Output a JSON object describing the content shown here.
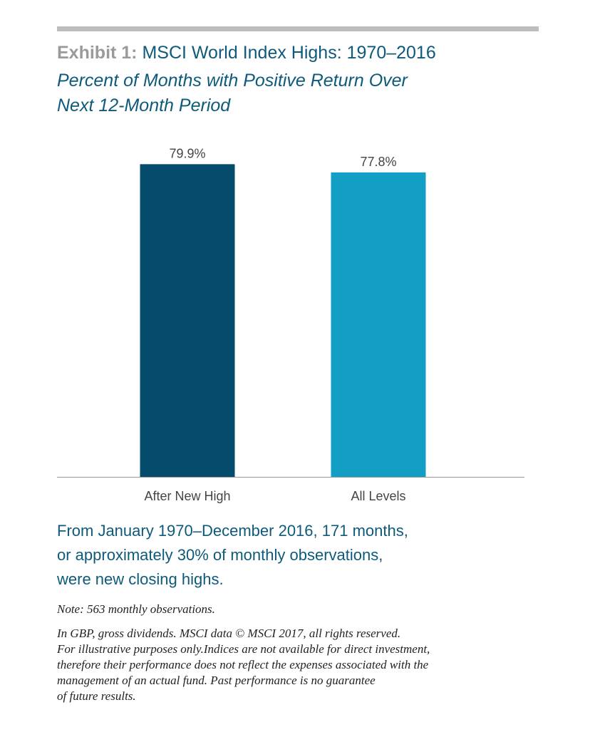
{
  "header": {
    "exhibit_label": "Exhibit 1:",
    "title": "MSCI World Index Highs: 1970–2016",
    "subtitle_line1": "Percent of Months with Positive Return Over",
    "subtitle_line2": "Next 12-Month Period"
  },
  "chart_data": {
    "type": "bar",
    "categories": [
      "After New High",
      "All Levels"
    ],
    "values": [
      79.9,
      77.8
    ],
    "data_labels": [
      "79.9%",
      "77.8%"
    ],
    "colors": [
      "#054b6b",
      "#139ec4"
    ],
    "ylim": [
      0,
      100
    ],
    "grid": false,
    "legend": "none",
    "xlabel": "",
    "ylabel": ""
  },
  "summary": {
    "line1": "From January 1970–December 2016, 171 months,",
    "line2": "or approximately 30% of monthly observations,",
    "line3": "were new closing highs."
  },
  "note": "Note: 563 monthly observations.",
  "disclaimer": {
    "line1": "In GBP, gross dividends. MSCI data © MSCI 2017, all rights reserved.",
    "line2": "For illustrative purposes only.Indices are not available for direct investment,",
    "line3": "therefore their performance does not reflect the expenses associated with the",
    "line4": "management of an actual fund. Past performance is no guarantee",
    "line5": "of future results."
  },
  "colors": {
    "title_blue": "#0e5a7a",
    "exhibit_gray": "#9a9a9a",
    "rule_gray": "#bdbdbd",
    "axis_gray": "#999999"
  }
}
